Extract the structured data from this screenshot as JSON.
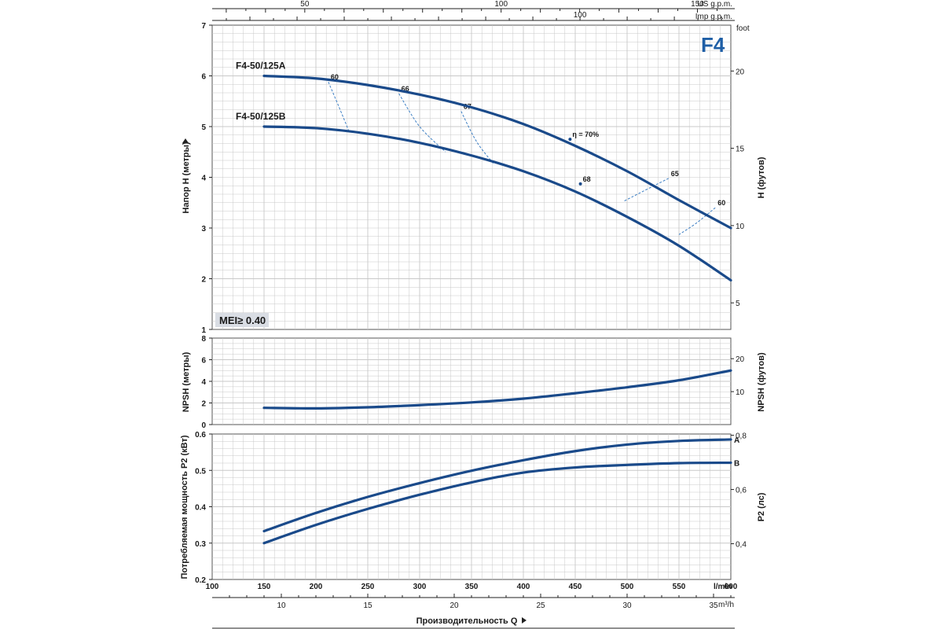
{
  "chart_data": [
    {
      "id": "head",
      "type": "line",
      "model_badge": "F4",
      "mei_badge": "MEI≥ 0.40",
      "ylabel": "Напор H (метры)",
      "ylabel_right": "H (футов)",
      "ylim": [
        1,
        7
      ],
      "yticks": [
        1,
        2,
        3,
        4,
        5,
        6,
        7
      ],
      "yticks_right_label": "foot",
      "yticks_right": [
        5,
        10,
        15,
        20
      ],
      "series": [
        {
          "name": "F4-50/125A",
          "x": [
            150,
            200,
            250,
            300,
            350,
            400,
            450,
            500,
            550,
            600
          ],
          "y": [
            6.0,
            5.95,
            5.82,
            5.63,
            5.38,
            5.05,
            4.62,
            4.12,
            3.55,
            3.0
          ]
        },
        {
          "name": "F4-50/125B",
          "x": [
            150,
            200,
            250,
            300,
            350,
            400,
            450,
            500,
            550,
            600
          ],
          "y": [
            5.0,
            4.97,
            4.86,
            4.68,
            4.43,
            4.12,
            3.72,
            3.22,
            2.65,
            1.97
          ]
        }
      ],
      "efficiency_lines": [
        {
          "label": "60",
          "x": [
            212,
            222,
            232
          ],
          "y": [
            5.88,
            5.4,
            4.9
          ]
        },
        {
          "label": "66",
          "x": [
            280,
            300,
            325
          ],
          "y": [
            5.65,
            5.0,
            4.5
          ]
        },
        {
          "label": "67",
          "x": [
            340,
            355,
            372
          ],
          "y": [
            5.3,
            4.7,
            4.25
          ]
        },
        {
          "label": "η = 70%",
          "x": [
            445
          ],
          "y": [
            4.75
          ]
        },
        {
          "label": "68",
          "x": [
            455
          ],
          "y": [
            3.87
          ]
        },
        {
          "label": "65",
          "x": [
            540,
            515,
            497
          ],
          "y": [
            3.98,
            3.72,
            3.53
          ]
        },
        {
          "label": "60",
          "x": [
            585,
            567,
            550
          ],
          "y": [
            3.4,
            3.1,
            2.87
          ]
        }
      ]
    },
    {
      "id": "npsh",
      "type": "line",
      "ylabel": "NPSH (метры)",
      "ylabel_right": "NPSH (футов)",
      "ylim": [
        0,
        8
      ],
      "yticks": [
        0,
        2,
        4,
        6,
        8
      ],
      "yticks_right": [
        10,
        20
      ],
      "series": [
        {
          "x": [
            150,
            200,
            250,
            300,
            350,
            400,
            450,
            500,
            550,
            600
          ],
          "y": [
            1.55,
            1.5,
            1.6,
            1.8,
            2.05,
            2.4,
            2.9,
            3.45,
            4.1,
            5.0
          ]
        }
      ]
    },
    {
      "id": "power",
      "type": "line",
      "ylabel": "Потребляемая мощность P2 (кВт)",
      "ylabel_right": "P2 (лс)",
      "ylim": [
        0.2,
        0.6
      ],
      "yticks": [
        0.2,
        0.3,
        0.4,
        0.5,
        0.6
      ],
      "yticks_right": [
        "0,4",
        "0,6",
        "0,8"
      ],
      "series": [
        {
          "name": "A",
          "x": [
            150,
            200,
            250,
            300,
            350,
            400,
            450,
            500,
            550,
            600
          ],
          "y": [
            0.333,
            0.383,
            0.427,
            0.465,
            0.499,
            0.528,
            0.553,
            0.571,
            0.581,
            0.585
          ]
        },
        {
          "name": "B",
          "x": [
            150,
            200,
            250,
            300,
            350,
            400,
            450,
            500,
            550,
            600
          ],
          "y": [
            0.3,
            0.35,
            0.394,
            0.433,
            0.467,
            0.494,
            0.508,
            0.515,
            0.52,
            0.521
          ]
        }
      ]
    }
  ],
  "axes": {
    "lmin_label": "l/min",
    "lmin_ticks": [
      100,
      150,
      200,
      250,
      300,
      350,
      400,
      450,
      500,
      550,
      600
    ],
    "m3h_label": "m³/h",
    "m3h_ticks": [
      10,
      15,
      20,
      25,
      30,
      35
    ],
    "us_gpm_label": "US g.p.m.",
    "us_gpm_ticks": [
      50,
      100,
      150
    ],
    "imp_gpm_label": "Imp g.p.m.",
    "imp_gpm_ticks": [
      100
    ],
    "xlabel": "Производительность Q"
  },
  "colors": {
    "curve": "#1a4a8a",
    "eff": "#3d7fc4",
    "grid": "#c8c8c8",
    "badge_bg": "#d9dde4"
  }
}
